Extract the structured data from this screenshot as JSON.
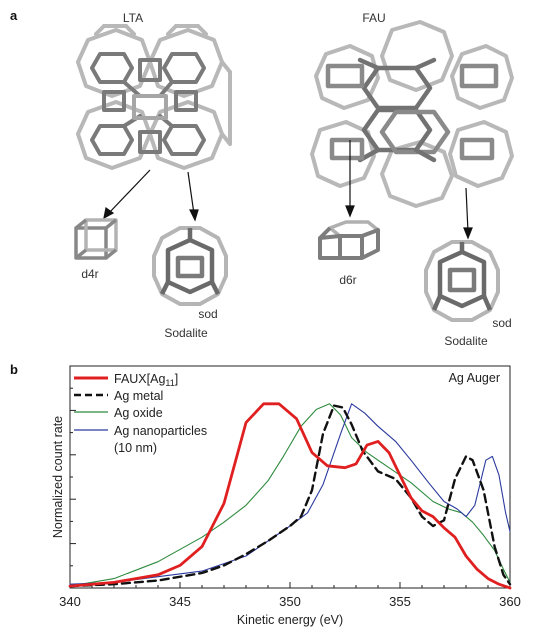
{
  "panel_a": {
    "letter": "a",
    "frameworks": [
      {
        "name": "LTA",
        "units": [
          {
            "id": "d4r",
            "label": "d4r"
          },
          {
            "id": "sod-lta",
            "label": "sod",
            "name": "Sodalite"
          }
        ]
      },
      {
        "name": "FAU",
        "units": [
          {
            "id": "d6r",
            "label": "d6r"
          },
          {
            "id": "sod-fau",
            "label": "sod",
            "name": "Sodalite"
          }
        ]
      }
    ]
  },
  "panel_b": {
    "letter": "b",
    "annotation": "Ag Auger"
  },
  "chart_data": {
    "type": "line",
    "title": "",
    "annotation": "Ag Auger",
    "xlabel": "Kinetic energy (eV)",
    "ylabel": "Normalized count rate",
    "xlim": [
      340,
      360
    ],
    "ylim": [
      0,
      1
    ],
    "x_ticks": [
      340,
      345,
      350,
      355,
      360
    ],
    "y_tick_labels_shown": false,
    "grid": false,
    "legend_position": "top-left",
    "series": [
      {
        "name": "FAUX[Ag11]",
        "legend_main": "FAUX[Ag",
        "legend_sub": "11",
        "legend_tail": "]",
        "color": "#e02020",
        "style": "solid-thick",
        "points": [
          [
            340,
            0.01
          ],
          [
            342,
            0.03
          ],
          [
            344,
            0.07
          ],
          [
            345,
            0.12
          ],
          [
            346,
            0.22
          ],
          [
            347,
            0.45
          ],
          [
            348,
            0.88
          ],
          [
            348.8,
            0.98
          ],
          [
            349.5,
            0.98
          ],
          [
            350.3,
            0.9
          ],
          [
            351,
            0.72
          ],
          [
            351.7,
            0.65
          ],
          [
            352.5,
            0.64
          ],
          [
            353,
            0.66
          ],
          [
            353.5,
            0.76
          ],
          [
            354,
            0.78
          ],
          [
            354.5,
            0.72
          ],
          [
            355,
            0.6
          ],
          [
            355.5,
            0.48
          ],
          [
            356,
            0.41
          ],
          [
            356.5,
            0.38
          ],
          [
            357,
            0.32
          ],
          [
            357.5,
            0.27
          ],
          [
            358,
            0.17
          ],
          [
            358.5,
            0.1
          ],
          [
            359,
            0.05
          ],
          [
            359.5,
            0.02
          ],
          [
            360,
            0.0
          ]
        ]
      },
      {
        "name": "Ag metal",
        "color": "#111111",
        "style": "dashed",
        "points": [
          [
            340,
            0.01
          ],
          [
            342,
            0.02
          ],
          [
            344,
            0.04
          ],
          [
            346,
            0.08
          ],
          [
            347,
            0.12
          ],
          [
            348,
            0.18
          ],
          [
            349,
            0.25
          ],
          [
            350,
            0.33
          ],
          [
            350.5,
            0.38
          ],
          [
            351,
            0.52
          ],
          [
            351.5,
            0.82
          ],
          [
            352,
            0.97
          ],
          [
            352.4,
            0.96
          ],
          [
            352.8,
            0.87
          ],
          [
            353.3,
            0.73
          ],
          [
            354,
            0.62
          ],
          [
            354.8,
            0.58
          ],
          [
            355.5,
            0.48
          ],
          [
            356,
            0.38
          ],
          [
            356.5,
            0.33
          ],
          [
            357,
            0.36
          ],
          [
            357.5,
            0.58
          ],
          [
            358,
            0.7
          ],
          [
            358.3,
            0.68
          ],
          [
            358.8,
            0.52
          ],
          [
            359.3,
            0.22
          ],
          [
            359.7,
            0.07
          ],
          [
            360,
            0.02
          ]
        ]
      },
      {
        "name": "Ag oxide",
        "color": "#2e8b3e",
        "style": "solid-thin",
        "points": [
          [
            340,
            0.01
          ],
          [
            342,
            0.05
          ],
          [
            344,
            0.14
          ],
          [
            346,
            0.27
          ],
          [
            347,
            0.35
          ],
          [
            348,
            0.44
          ],
          [
            349,
            0.57
          ],
          [
            349.7,
            0.7
          ],
          [
            350.5,
            0.86
          ],
          [
            351.2,
            0.95
          ],
          [
            351.8,
            0.98
          ],
          [
            352.3,
            0.92
          ],
          [
            352.8,
            0.8
          ],
          [
            353.5,
            0.72
          ],
          [
            354.5,
            0.64
          ],
          [
            355.5,
            0.56
          ],
          [
            356.5,
            0.46
          ],
          [
            357.2,
            0.42
          ],
          [
            357.8,
            0.4
          ],
          [
            358.3,
            0.35
          ],
          [
            358.8,
            0.28
          ],
          [
            359.3,
            0.2
          ],
          [
            359.7,
            0.1
          ],
          [
            360,
            0.03
          ]
        ]
      },
      {
        "name": "Ag nanoparticles (10 nm)",
        "legend_line1": "Ag nanoparticles",
        "legend_line2": "(10 nm)",
        "color": "#2b3a9e",
        "style": "solid-thin",
        "points": [
          [
            340,
            0.02
          ],
          [
            342,
            0.03
          ],
          [
            344,
            0.06
          ],
          [
            346,
            0.09
          ],
          [
            347,
            0.13
          ],
          [
            348,
            0.17
          ],
          [
            349,
            0.25
          ],
          [
            350,
            0.33
          ],
          [
            350.8,
            0.4
          ],
          [
            351.5,
            0.55
          ],
          [
            352.3,
            0.82
          ],
          [
            352.8,
            0.98
          ],
          [
            353.4,
            0.93
          ],
          [
            354,
            0.86
          ],
          [
            354.8,
            0.78
          ],
          [
            355.5,
            0.68
          ],
          [
            356.3,
            0.56
          ],
          [
            357,
            0.46
          ],
          [
            357.6,
            0.42
          ],
          [
            358,
            0.38
          ],
          [
            358.4,
            0.44
          ],
          [
            358.9,
            0.68
          ],
          [
            359.2,
            0.7
          ],
          [
            359.5,
            0.6
          ],
          [
            359.8,
            0.4
          ],
          [
            360,
            0.3
          ]
        ]
      }
    ]
  }
}
